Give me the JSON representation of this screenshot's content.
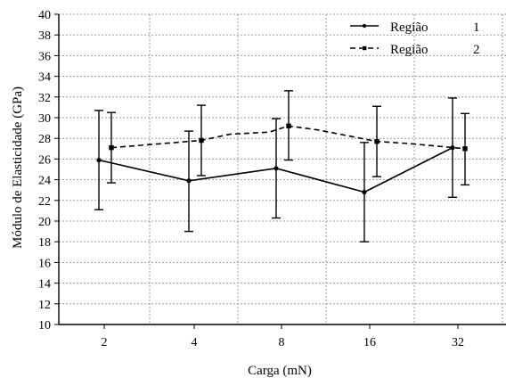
{
  "chart_data": {
    "type": "line",
    "title": "",
    "xlabel": "Carga (mN)",
    "ylabel": "Módulo de Elasticidade (GPa)",
    "categories": [
      "2",
      "4",
      "8",
      "16",
      "32"
    ],
    "ylim": [
      10,
      40
    ],
    "yticks": [
      "10",
      "12",
      "14",
      "16",
      "18",
      "20",
      "22",
      "24",
      "26",
      "28",
      "30",
      "32",
      "34",
      "36",
      "38",
      "40"
    ],
    "grid": true,
    "legend_position": "top-right",
    "series": [
      {
        "name": "Região",
        "legend_number": "1",
        "style": "solid",
        "marker": "circle",
        "color": "#000000",
        "values": [
          25.9,
          23.9,
          25.1,
          22.8,
          27.1
        ],
        "error_low": [
          21.1,
          19.0,
          20.3,
          18.0,
          22.3
        ],
        "error_high": [
          30.7,
          28.7,
          29.9,
          27.6,
          31.9
        ]
      },
      {
        "name": "Região",
        "legend_number": "2",
        "style": "dashed",
        "marker": "square",
        "color": "#000000",
        "values": [
          27.1,
          27.8,
          29.2,
          27.7,
          27.0
        ],
        "error_low": [
          23.7,
          24.4,
          25.9,
          24.3,
          23.5
        ],
        "error_high": [
          30.5,
          31.2,
          32.6,
          31.1,
          30.4
        ]
      }
    ]
  }
}
